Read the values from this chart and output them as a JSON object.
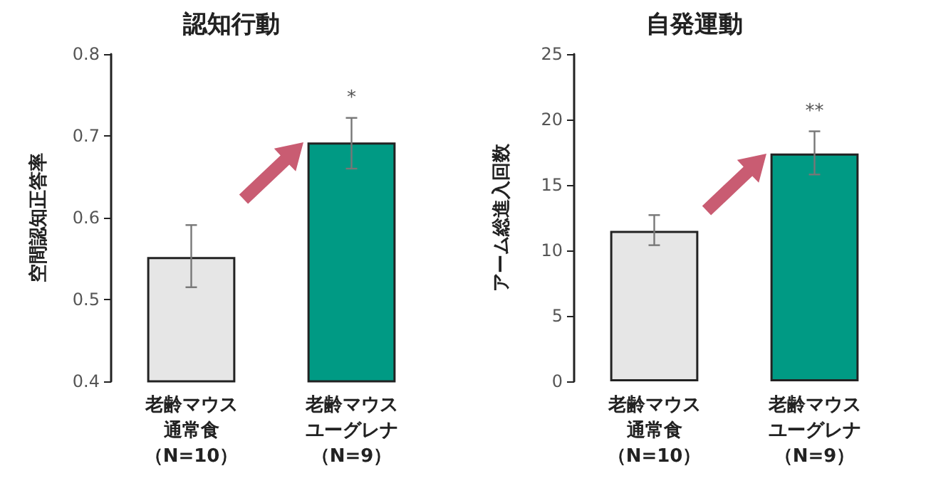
{
  "chart_data": [
    {
      "type": "bar",
      "title": "認知行動",
      "ylabel": "空間認知正答率",
      "categories": [
        "老齢マウス通常食（N=10）",
        "老齢マウスユーグレナ（N=9）"
      ],
      "values": [
        0.552,
        0.692
      ],
      "colors": [
        "#e6e6e6",
        "#009a84"
      ],
      "errors": [
        [
          0.515,
          0.591
        ],
        [
          0.66,
          0.722
        ]
      ],
      "ylim": [
        0.4,
        0.8
      ],
      "yticks": [
        0.4,
        0.5,
        0.6,
        0.7,
        0.8
      ],
      "annotations": [
        "*"
      ]
    },
    {
      "type": "bar",
      "title": "自発運動",
      "ylabel": "アーム総進入回数",
      "categories": [
        "老齢マウス通常食（N=10）",
        "老齢マウスユーグレナ（N=9）"
      ],
      "values": [
        11.5,
        17.4
      ],
      "colors": [
        "#e6e6e6",
        "#009a84"
      ],
      "errors": [
        [
          10.4,
          12.7
        ],
        [
          15.8,
          19.1
        ]
      ],
      "ylim": [
        0,
        25
      ],
      "yticks": [
        0,
        5,
        10,
        15,
        20,
        25
      ],
      "annotations": [
        "**"
      ]
    }
  ]
}
